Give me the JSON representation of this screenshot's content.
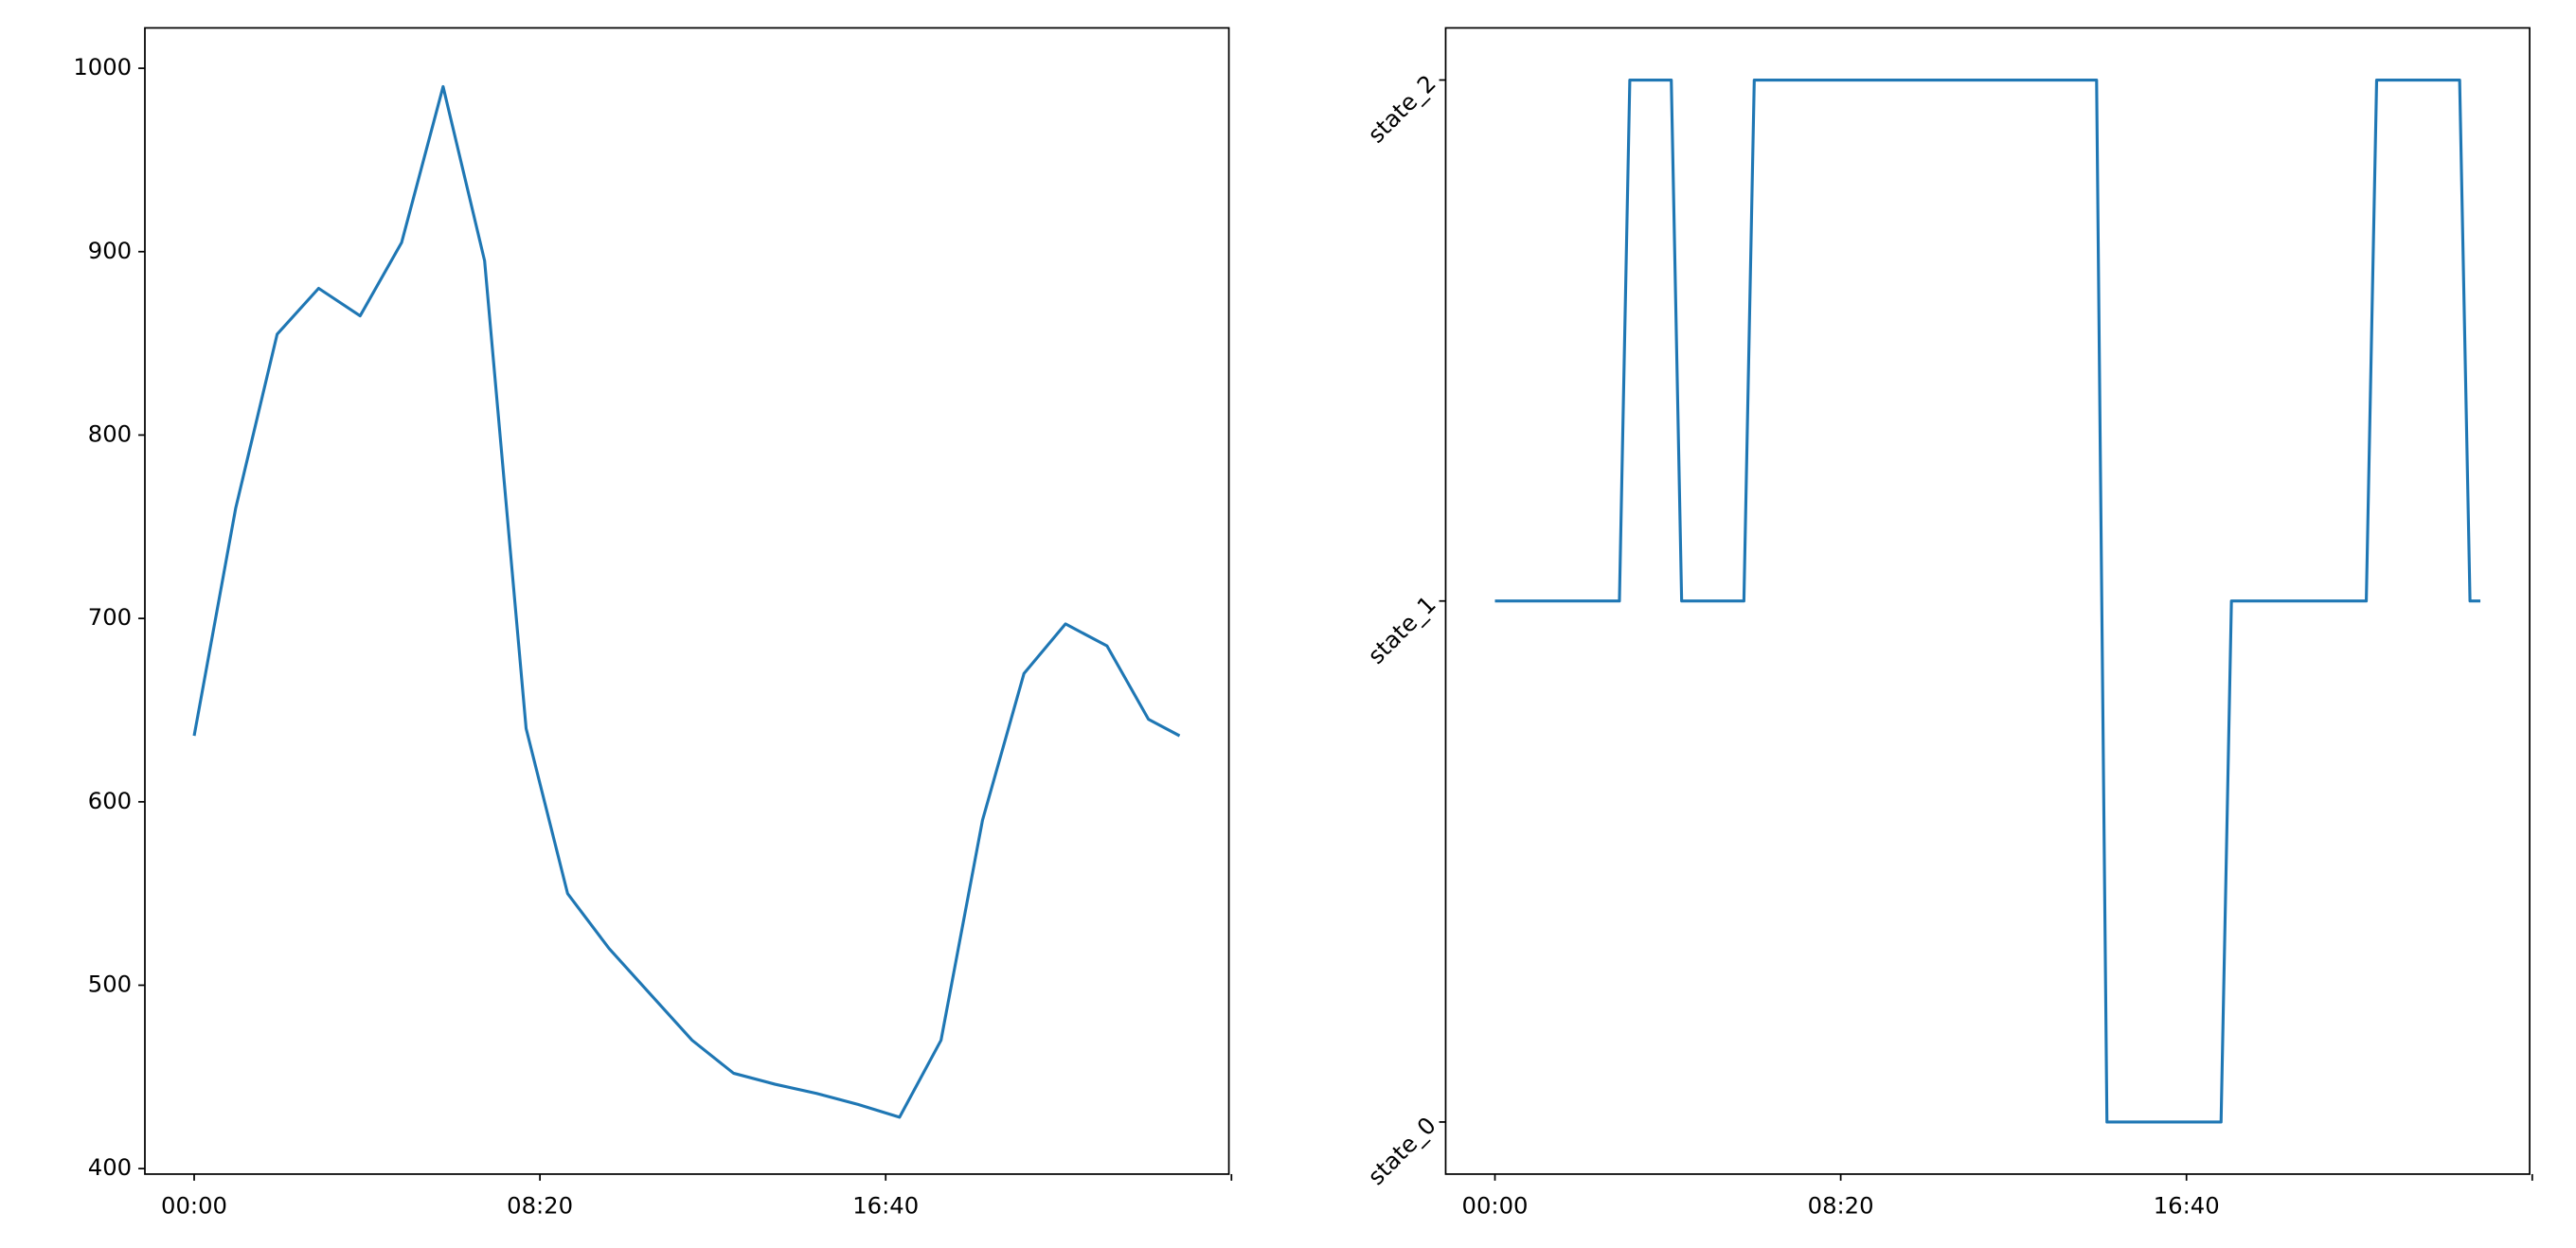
{
  "chart_data": [
    {
      "type": "line",
      "color": "#1f77b4",
      "x": [
        0,
        60,
        120,
        180,
        240,
        300,
        360,
        420,
        480,
        540,
        600,
        660,
        720,
        780,
        840,
        900,
        960,
        1020,
        1080,
        1140,
        1200,
        1260,
        1320,
        1380,
        1425
      ],
      "values": [
        636,
        760,
        855,
        880,
        865,
        905,
        990,
        895,
        640,
        550,
        520,
        495,
        470,
        452,
        446,
        441,
        435,
        428,
        470,
        590,
        670,
        697,
        685,
        645,
        636
      ],
      "xlim": [
        -71.25,
        1496.25
      ],
      "xticks": [
        {
          "value": 0,
          "label": "00:00"
        },
        {
          "value": 500,
          "label": "08:20"
        },
        {
          "value": 1000,
          "label": "16:40"
        },
        {
          "value": 1500,
          "label": null
        }
      ],
      "ylim": [
        397,
        1022
      ],
      "yticks": [
        400,
        500,
        600,
        700,
        800,
        900,
        1000
      ],
      "ytick_rotation": 0
    },
    {
      "type": "line",
      "color": "#1f77b4",
      "x": [
        0,
        180,
        195,
        255,
        270,
        360,
        375,
        870,
        885,
        1050,
        1065,
        1260,
        1275,
        1395,
        1410,
        1425
      ],
      "values": [
        1,
        1,
        2,
        2,
        1,
        1,
        2,
        2,
        0,
        0,
        1,
        1,
        2,
        2,
        1,
        1
      ],
      "xlim": [
        -71.25,
        1496.25
      ],
      "xticks": [
        {
          "value": 0,
          "label": "00:00"
        },
        {
          "value": 500,
          "label": "08:20"
        },
        {
          "value": 1000,
          "label": "16:40"
        },
        {
          "value": 1500,
          "label": null
        }
      ],
      "ylim": [
        -0.1,
        2.1
      ],
      "yticks": [
        {
          "value": 0,
          "label": "state_0"
        },
        {
          "value": 1,
          "label": "state_1"
        },
        {
          "value": 2,
          "label": "state_2"
        }
      ],
      "ytick_rotation": -45
    }
  ]
}
